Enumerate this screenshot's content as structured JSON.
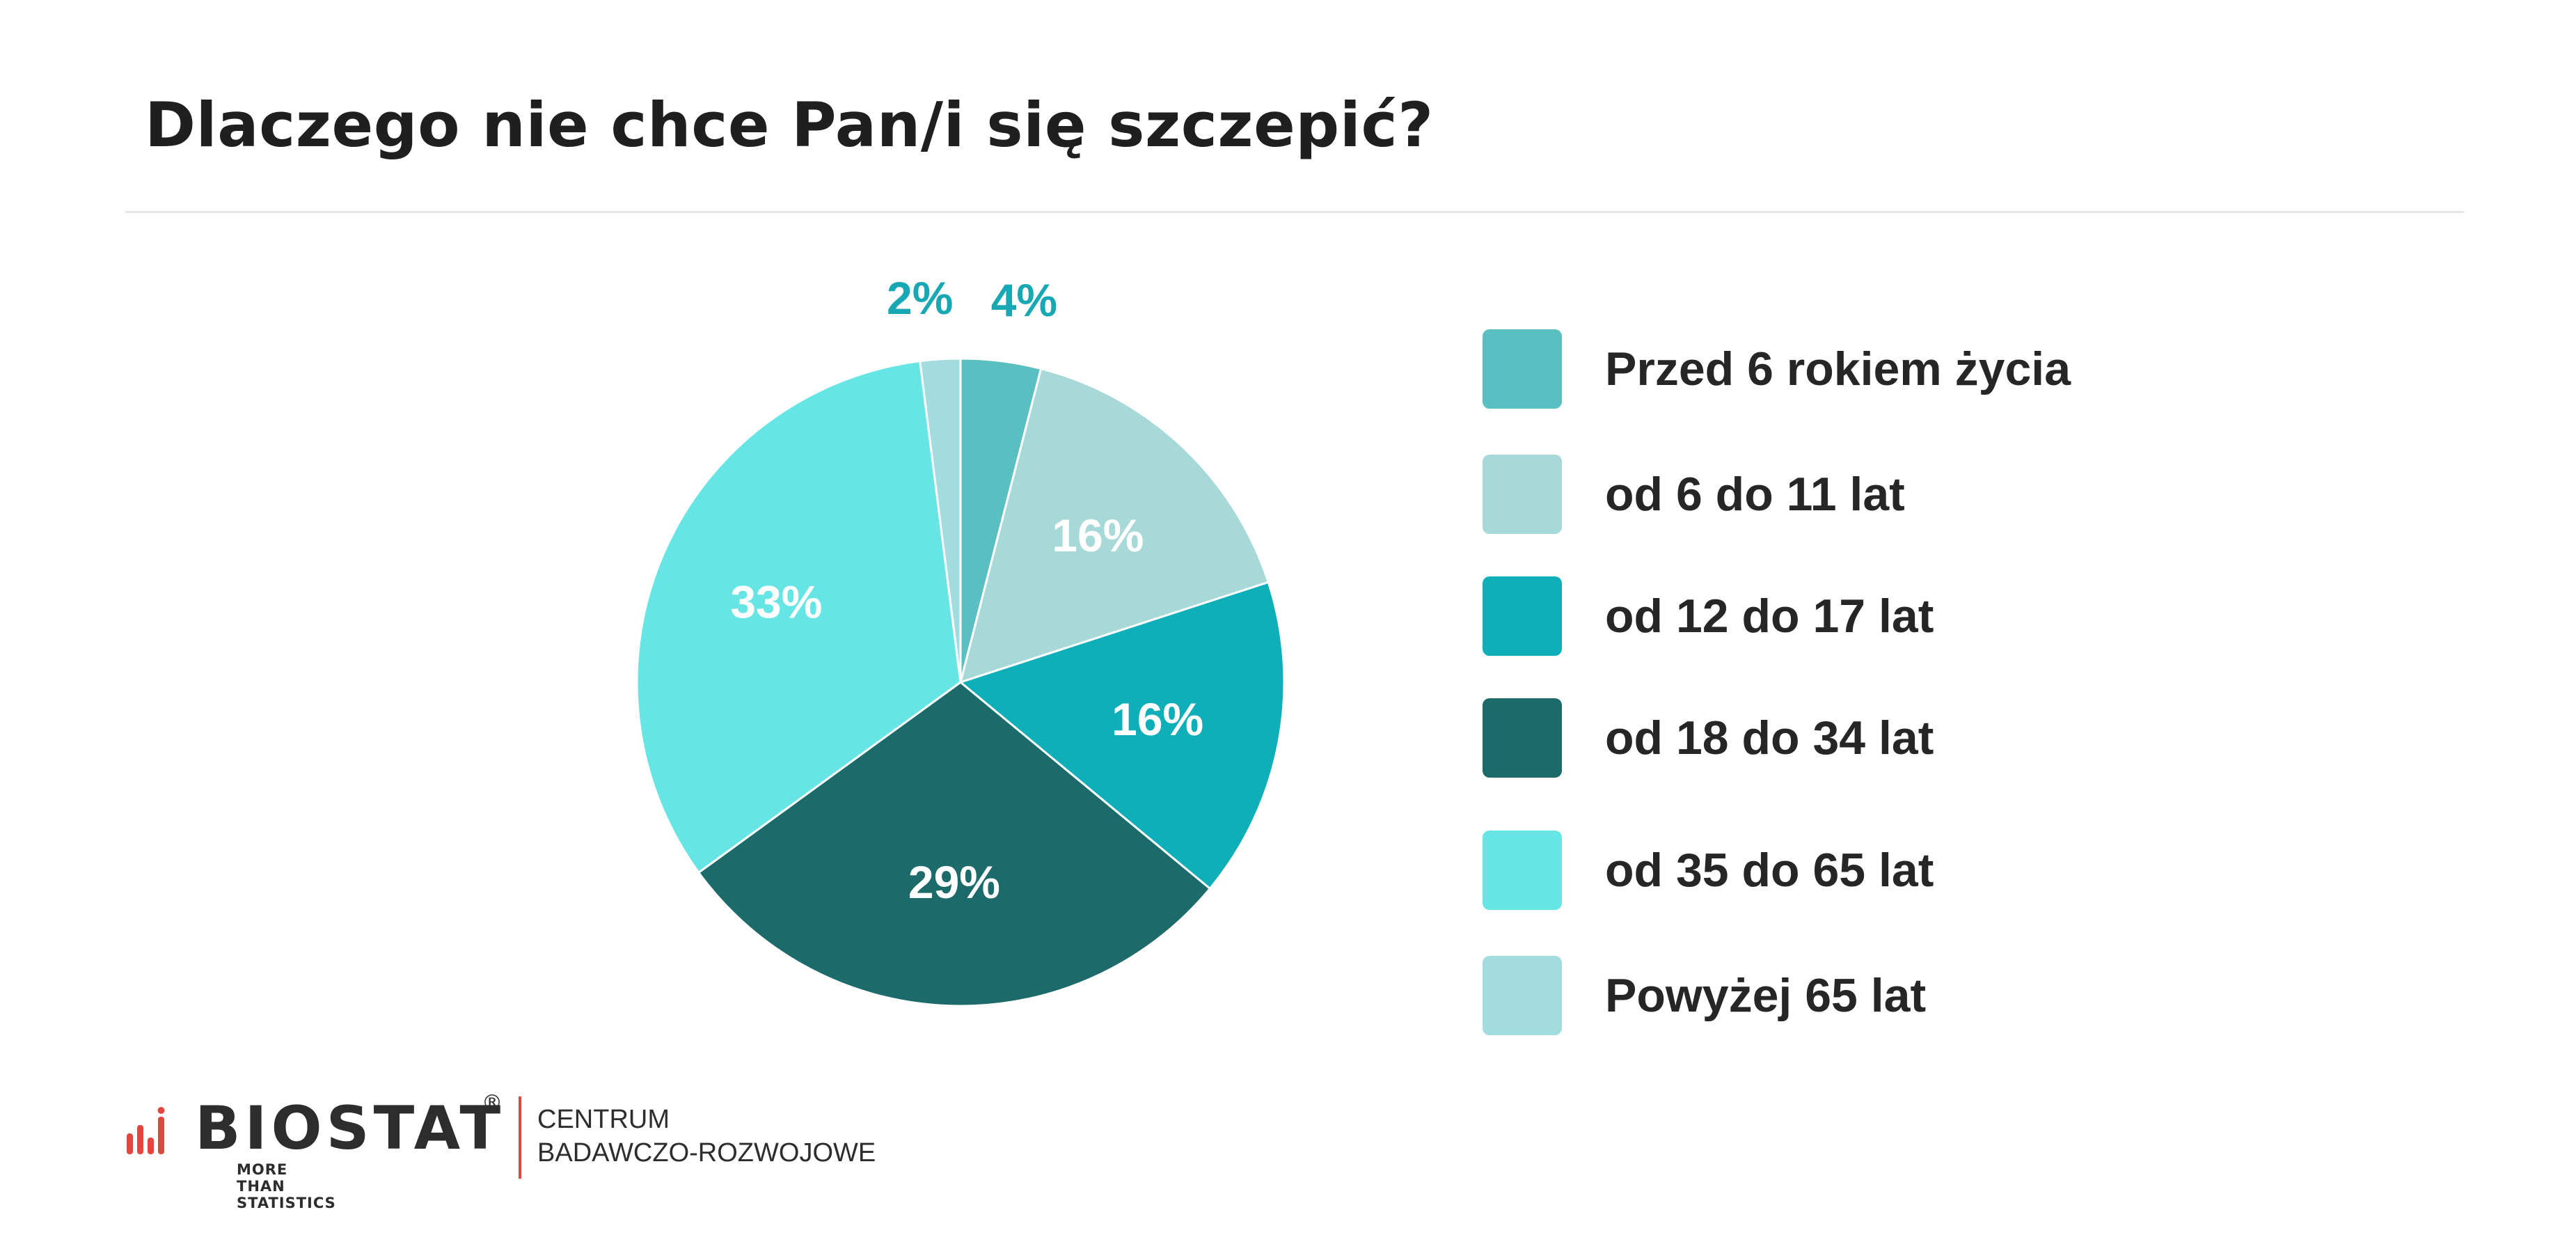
{
  "title": "Dlaczego nie chce Pan/i się szczepić?",
  "chart_data": {
    "type": "pie",
    "categories": [
      "Przed 6 rokiem życia",
      "od 6 do 11 lat",
      "od 12 do 17 lat",
      "od 18 do 34 lat",
      "od 35 do 65 lat",
      "Powyżej 65 lat"
    ],
    "values": [
      4,
      16,
      16,
      29,
      33,
      2
    ],
    "labels": [
      "4%",
      "16%",
      "16%",
      "29%",
      "33%",
      "2%"
    ],
    "colors": [
      "#5abfc0",
      "#a8d9d9",
      "#0eafb9",
      "#1c6a6a",
      "#67e5e5",
      "#a2dcdf"
    ],
    "label_colors": [
      "#18a8b3",
      "#ffffff",
      "#ffffff",
      "#ffffff",
      "#ffffff",
      "#18a8b3"
    ],
    "legend_position": "right"
  },
  "footer": {
    "brand": "BIOSTAT",
    "registered": "®",
    "tagline": "MORE THAN STATISTICS",
    "center_line1": "CENTRUM",
    "center_line2": "BADAWCZO-ROZWOJOWE"
  }
}
